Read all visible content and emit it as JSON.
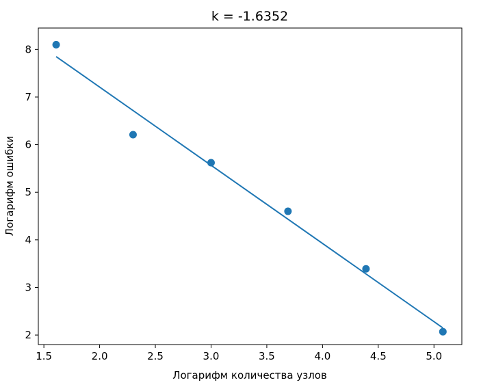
{
  "chart_data": {
    "type": "scatter",
    "title": "k = -1.6352",
    "xlabel": "Логарифм количества узлов",
    "ylabel": "Логарифм ошибки",
    "xlim": [
      1.45,
      5.25
    ],
    "ylim": [
      1.8,
      8.45
    ],
    "xticks": [
      "1.5",
      "2.0",
      "2.5",
      "3.0",
      "3.5",
      "4.0",
      "4.5",
      "5.0"
    ],
    "yticks": [
      "2",
      "3",
      "4",
      "5",
      "6",
      "7",
      "8"
    ],
    "grid": false,
    "series": [
      {
        "kind": "scatter",
        "color": "#1f77b4",
        "x": [
          1.61,
          2.3,
          3.0,
          3.69,
          4.39,
          5.08
        ],
        "y": [
          8.1,
          6.21,
          5.62,
          4.6,
          3.39,
          2.07
        ]
      },
      {
        "kind": "line",
        "color": "#1f77b4",
        "x": [
          1.61,
          5.08
        ],
        "y": [
          7.85,
          2.15
        ]
      }
    ]
  }
}
